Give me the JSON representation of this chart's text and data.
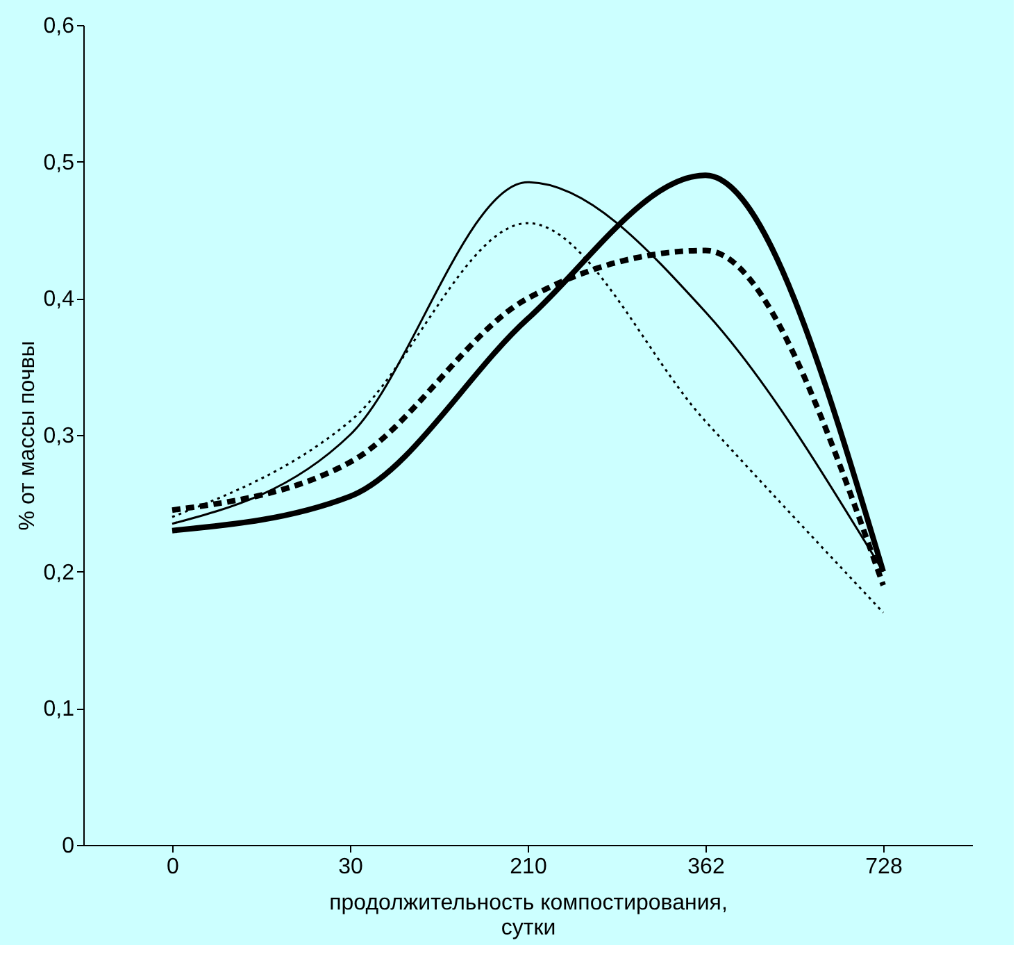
{
  "chart_data": {
    "type": "line",
    "xlabel": "продолжительность компостирования, сутки",
    "ylabel": "% от массы почвы",
    "categories": [
      "0",
      "30",
      "210",
      "362",
      "728"
    ],
    "series": [
      {
        "color": "#000000",
        "line_style": "solid",
        "values": [
          0.235,
          0.3,
          0.485,
          0.39,
          0.2
        ]
      },
      {
        "color": "#000000",
        "line_style": "dotted",
        "values": [
          0.24,
          0.31,
          0.455,
          0.31,
          0.17
        ]
      },
      {
        "color": "#000000",
        "line_style": "dashed",
        "values": [
          0.245,
          0.28,
          0.4,
          0.435,
          0.19
        ]
      },
      {
        "color": "#000000",
        "line_style": "solid",
        "values": [
          0.23,
          0.255,
          0.385,
          0.49,
          0.2
        ]
      }
    ],
    "ylim": [
      0,
      0.6
    ],
    "yticks": [
      0,
      {
        "value": 0.1,
        "label": "0,1"
      },
      {
        "value": 0.2,
        "label": "0,2"
      },
      {
        "value": 0.3,
        "label": "0,3"
      },
      {
        "value": 0.4,
        "label": "0,4"
      },
      {
        "value": 0.5,
        "label": "0,5"
      },
      {
        "value": 0.6,
        "label": "0,6"
      }
    ],
    "grid": false,
    "legend": false,
    "marker": "none"
  }
}
